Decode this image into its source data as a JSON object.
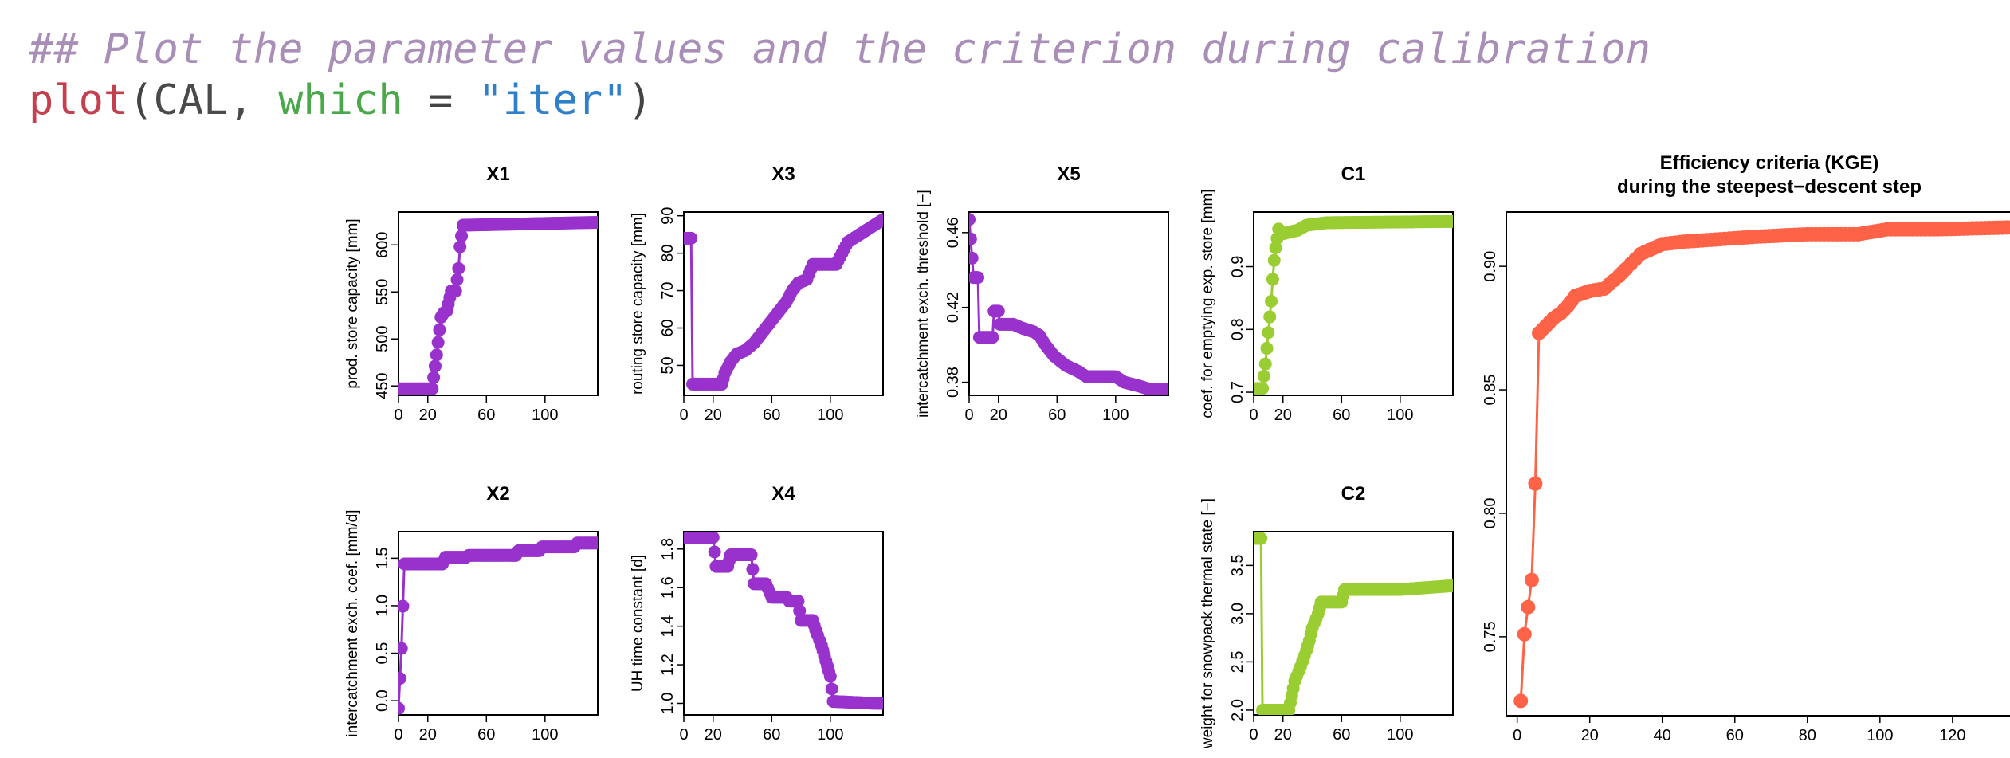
{
  "code": {
    "comment": "## Plot the parameter values and the criterion during calibration",
    "fn": "plot",
    "open": "(",
    "arg1": "CAL, ",
    "kw": "which",
    "eq": " = ",
    "str": "\"iter\"",
    "close": ")"
  },
  "colors": {
    "param": "#9932cc",
    "snow": "#9acd32",
    "crit": "#ff6347"
  },
  "chart_data": [
    {
      "type": "line",
      "title": "X1",
      "ylabel": "prod. store capacity [mm]",
      "xlim": [
        0,
        136
      ],
      "ylim": [
        440,
        635
      ],
      "xticks": [
        0,
        20,
        60,
        100
      ],
      "yticks": [
        450,
        500,
        550,
        600
      ],
      "color": "param",
      "points": [
        [
          0,
          447
        ],
        [
          23,
          447
        ],
        [
          26,
          483
        ],
        [
          29,
          523
        ],
        [
          31,
          528
        ],
        [
          33,
          530
        ],
        [
          36,
          551
        ],
        [
          39,
          551
        ],
        [
          41,
          575
        ],
        [
          42,
          598
        ],
        [
          44,
          621
        ],
        [
          136,
          624
        ]
      ]
    },
    {
      "type": "line",
      "title": "X3",
      "ylabel": "routing store capacity [mm]",
      "xlim": [
        0,
        136
      ],
      "ylim": [
        42,
        91
      ],
      "xticks": [
        0,
        20,
        60,
        100
      ],
      "yticks": [
        50,
        60,
        70,
        80,
        90
      ],
      "color": "param",
      "points": [
        [
          0,
          84
        ],
        [
          5,
          84
        ],
        [
          6,
          45
        ],
        [
          26,
          45
        ],
        [
          28,
          48
        ],
        [
          32,
          51
        ],
        [
          36,
          53
        ],
        [
          42,
          54
        ],
        [
          48,
          56
        ],
        [
          52,
          58
        ],
        [
          56,
          60
        ],
        [
          60,
          62
        ],
        [
          64,
          64
        ],
        [
          70,
          67
        ],
        [
          74,
          70
        ],
        [
          78,
          72
        ],
        [
          84,
          73
        ],
        [
          88,
          77
        ],
        [
          104,
          77
        ],
        [
          108,
          80
        ],
        [
          112,
          83
        ],
        [
          120,
          85
        ],
        [
          128,
          87
        ],
        [
          136,
          89
        ]
      ]
    },
    {
      "type": "line",
      "title": "X5",
      "ylabel": "intercatchment exch. threshold [−]",
      "xlim": [
        0,
        136
      ],
      "ylim": [
        0.373,
        0.471
      ],
      "xticks": [
        0,
        20,
        60,
        100
      ],
      "yticks": [
        0.38,
        0.42,
        0.46
      ],
      "color": "param",
      "points": [
        [
          0,
          0.467
        ],
        [
          3,
          0.436
        ],
        [
          6,
          0.436
        ],
        [
          7,
          0.404
        ],
        [
          16,
          0.404
        ],
        [
          17,
          0.418
        ],
        [
          20,
          0.418
        ],
        [
          21,
          0.411
        ],
        [
          30,
          0.411
        ],
        [
          36,
          0.409
        ],
        [
          44,
          0.407
        ],
        [
          48,
          0.405
        ],
        [
          52,
          0.4
        ],
        [
          58,
          0.394
        ],
        [
          66,
          0.389
        ],
        [
          74,
          0.386
        ],
        [
          80,
          0.383
        ],
        [
          100,
          0.383
        ],
        [
          106,
          0.38
        ],
        [
          116,
          0.378
        ],
        [
          124,
          0.376
        ],
        [
          136,
          0.376
        ]
      ]
    },
    {
      "type": "line",
      "title": "C1",
      "ylabel": "coef. for emptying exp. store [mm]",
      "xlim": [
        0,
        136
      ],
      "ylim": [
        0.695,
        0.987
      ],
      "xticks": [
        0,
        20,
        60,
        100
      ],
      "yticks": [
        0.7,
        0.8,
        0.9
      ],
      "color": "snow",
      "points": [
        [
          0,
          0.706
        ],
        [
          6,
          0.706
        ],
        [
          8,
          0.745
        ],
        [
          10,
          0.795
        ],
        [
          11,
          0.82
        ],
        [
          12,
          0.845
        ],
        [
          13,
          0.88
        ],
        [
          14,
          0.91
        ],
        [
          15,
          0.93
        ],
        [
          16,
          0.945
        ],
        [
          17,
          0.96
        ],
        [
          19,
          0.952
        ],
        [
          30,
          0.958
        ],
        [
          36,
          0.966
        ],
        [
          50,
          0.97
        ],
        [
          136,
          0.972
        ]
      ]
    },
    {
      "type": "line",
      "title": "X2",
      "ylabel": "intercatchment exch. coef. [mm/d]",
      "xlim": [
        0,
        136
      ],
      "ylim": [
        -0.15,
        1.78
      ],
      "xticks": [
        0,
        20,
        60,
        100
      ],
      "yticks": [
        0.0,
        0.5,
        1.0,
        1.5
      ],
      "color": "param",
      "points": [
        [
          0,
          -0.08
        ],
        [
          2,
          0.55
        ],
        [
          4,
          1.44
        ],
        [
          30,
          1.44
        ],
        [
          32,
          1.51
        ],
        [
          46,
          1.51
        ],
        [
          48,
          1.53
        ],
        [
          80,
          1.53
        ],
        [
          82,
          1.58
        ],
        [
          96,
          1.58
        ],
        [
          98,
          1.62
        ],
        [
          120,
          1.62
        ],
        [
          122,
          1.66
        ],
        [
          136,
          1.66
        ]
      ]
    },
    {
      "type": "line",
      "title": "X4",
      "ylabel": "UH time constant [d]",
      "xlim": [
        0,
        136
      ],
      "ylim": [
        0.94,
        1.89
      ],
      "xticks": [
        0,
        20,
        60,
        100
      ],
      "yticks": [
        1.0,
        1.2,
        1.4,
        1.6,
        1.8
      ],
      "color": "param",
      "points": [
        [
          0,
          1.86
        ],
        [
          20,
          1.86
        ],
        [
          22,
          1.71
        ],
        [
          30,
          1.71
        ],
        [
          32,
          1.77
        ],
        [
          46,
          1.77
        ],
        [
          48,
          1.62
        ],
        [
          56,
          1.62
        ],
        [
          60,
          1.55
        ],
        [
          70,
          1.55
        ],
        [
          72,
          1.53
        ],
        [
          78,
          1.53
        ],
        [
          80,
          1.43
        ],
        [
          88,
          1.43
        ],
        [
          90,
          1.38
        ],
        [
          94,
          1.3
        ],
        [
          97,
          1.22
        ],
        [
          100,
          1.14
        ],
        [
          102,
          1.01
        ],
        [
          130,
          1.0
        ],
        [
          136,
          1.0
        ]
      ]
    },
    {
      "type": "line",
      "title": "C2",
      "ylabel": "weight for snowpack thermal state [−]",
      "xlim": [
        0,
        136
      ],
      "ylim": [
        1.95,
        3.85
      ],
      "xticks": [
        0,
        20,
        60,
        100
      ],
      "yticks": [
        2.0,
        2.5,
        3.0,
        3.5
      ],
      "color": "snow",
      "points": [
        [
          0,
          3.78
        ],
        [
          5,
          3.78
        ],
        [
          6,
          2.0
        ],
        [
          24,
          2.0
        ],
        [
          26,
          2.15
        ],
        [
          28,
          2.3
        ],
        [
          32,
          2.45
        ],
        [
          36,
          2.62
        ],
        [
          38,
          2.72
        ],
        [
          40,
          2.85
        ],
        [
          44,
          3.0
        ],
        [
          46,
          3.12
        ],
        [
          60,
          3.12
        ],
        [
          62,
          3.25
        ],
        [
          100,
          3.25
        ],
        [
          136,
          3.29
        ]
      ]
    },
    {
      "type": "line",
      "title": "Efficiency criteria (KGE)",
      "subtitle": "during the steepest−descent step",
      "xlim": [
        -3,
        142
      ],
      "ylim": [
        0.718,
        0.922
      ],
      "xticks": [
        0,
        20,
        40,
        60,
        80,
        100,
        120
      ],
      "yticks": [
        0.75,
        0.8,
        0.85,
        0.9
      ],
      "color": "crit",
      "points": [
        [
          1,
          0.724
        ],
        [
          2,
          0.751
        ],
        [
          3,
          0.762
        ],
        [
          4,
          0.773
        ],
        [
          5,
          0.812
        ],
        [
          6,
          0.873
        ],
        [
          8,
          0.876
        ],
        [
          10,
          0.879
        ],
        [
          12,
          0.881
        ],
        [
          14,
          0.884
        ],
        [
          16,
          0.888
        ],
        [
          18,
          0.889
        ],
        [
          20,
          0.89
        ],
        [
          24,
          0.891
        ],
        [
          28,
          0.896
        ],
        [
          30,
          0.899
        ],
        [
          34,
          0.905
        ],
        [
          40,
          0.909
        ],
        [
          46,
          0.91
        ],
        [
          56,
          0.911
        ],
        [
          66,
          0.912
        ],
        [
          80,
          0.913
        ],
        [
          94,
          0.913
        ],
        [
          102,
          0.915
        ],
        [
          116,
          0.915
        ],
        [
          142,
          0.916
        ]
      ]
    }
  ]
}
